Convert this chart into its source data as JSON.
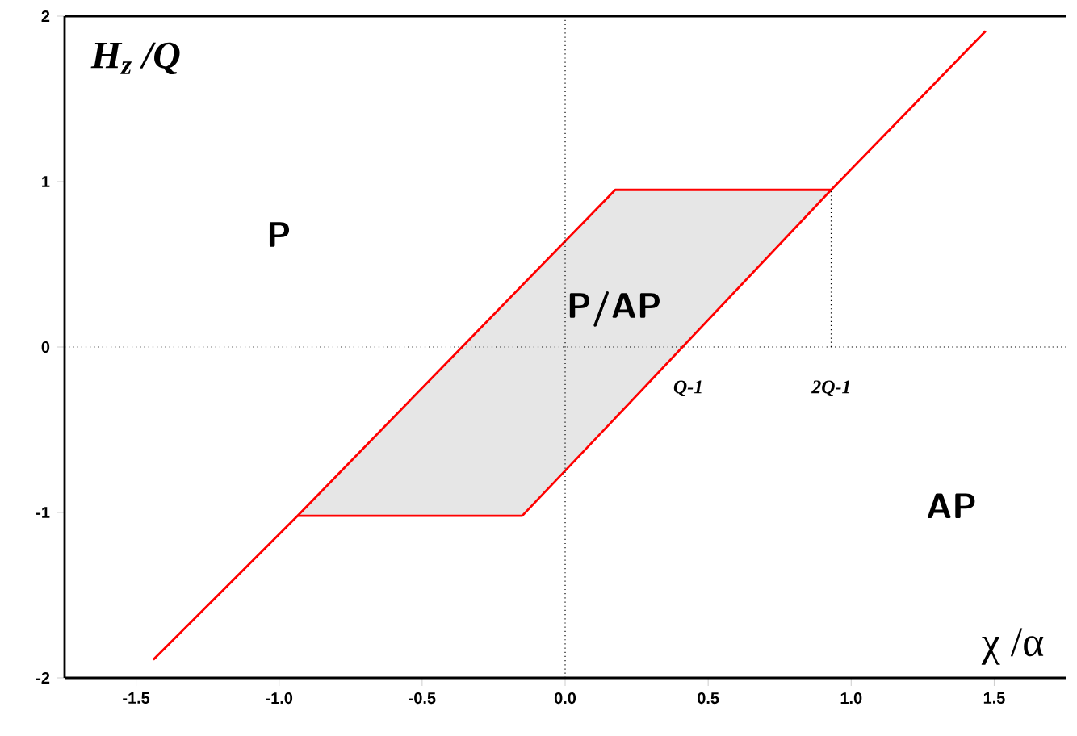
{
  "chart_data": {
    "type": "line",
    "xlabel": "χ /α",
    "ylabel": "H$_{z}$ /Q",
    "xlim": [
      -1.75,
      1.75
    ],
    "ylim": [
      -2,
      2
    ],
    "xticks": [
      -1.5,
      {
        "value": -1,
        "label": "-1.0"
      },
      -0.5,
      {
        "value": 0,
        "label": "0.0"
      },
      0.5,
      {
        "value": 1,
        "label": "1.0"
      },
      1.5
    ],
    "yticks": [
      -2,
      -1,
      0,
      1,
      2
    ],
    "grid": false,
    "marker": "none",
    "series": [
      {
        "color": "#ff0000",
        "line_style": "solid",
        "x": [
          -1.44,
          -0.935,
          0.175,
          0.93,
          1.47
        ],
        "values": [
          -1.89,
          -1.02,
          0.95,
          0.95,
          1.91
        ]
      },
      {
        "color": "#ff0000",
        "line_style": "solid",
        "x": [
          -0.935,
          -0.15,
          0.175,
          0.93
        ],
        "values": [
          -1.02,
          -1.02,
          -0.43,
          0.95
        ],
        "lower": [
          -1.02,
          -1.02,
          -0.43,
          0.95
        ],
        "upper": [
          -1.02,
          0.37,
          0.95,
          0.95
        ]
      },
      {
        "color": "#000000",
        "line_style": "dotted",
        "x": [
          0.93,
          0.93
        ],
        "values": [
          0,
          0.95
        ]
      },
      {
        "color": "#000000",
        "line_style": "dotted",
        "x": [
          0,
          0
        ],
        "values": [
          -2,
          2
        ]
      },
      {
        "color": "#000000",
        "line_style": "dotted",
        "x": [
          -1.75,
          1.75
        ],
        "values": [
          0,
          0
        ]
      }
    ],
    "annotations": [
      "P",
      "P/AP",
      "AP",
      "Q-1",
      "2Q-1"
    ]
  }
}
